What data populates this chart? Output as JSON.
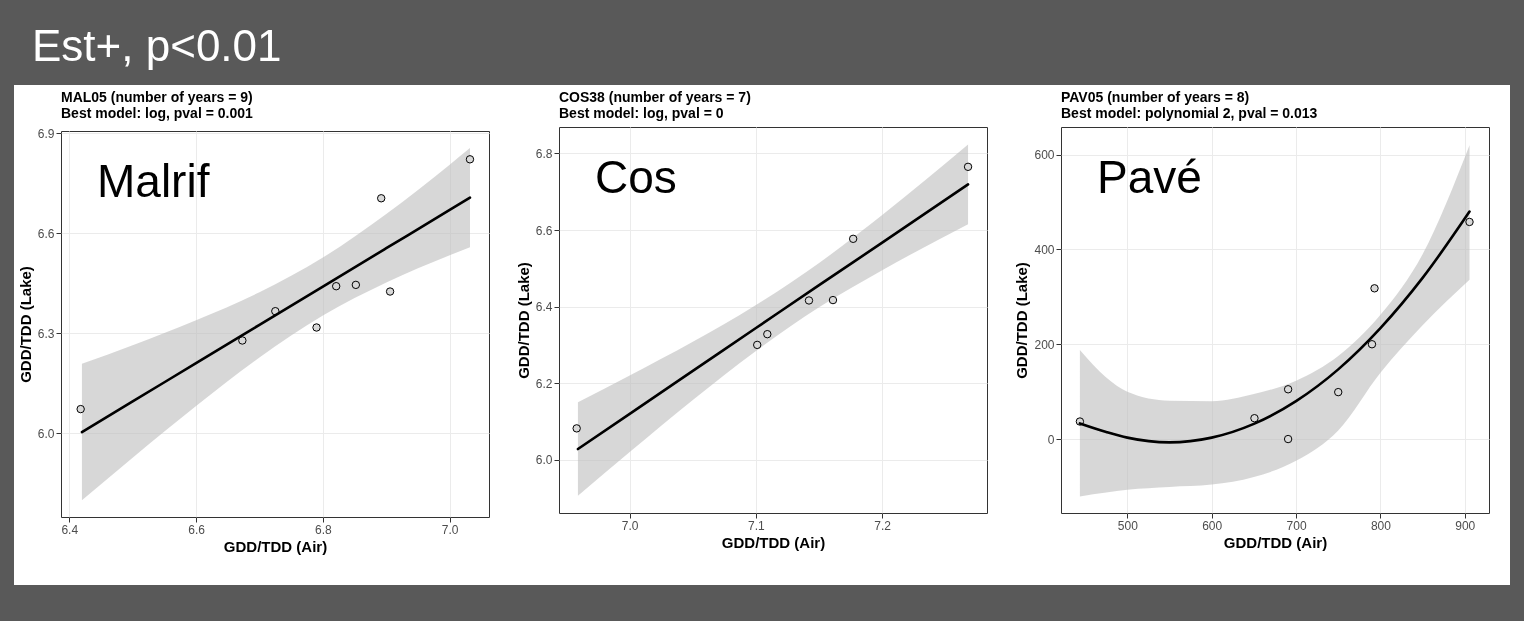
{
  "chart_data": [
    {
      "type": "scatter",
      "title": "MAL05 (number of years = 9)",
      "subtitle": "Best model: log, pval = 0.001",
      "xlabel": "GDD/TDD (Air)",
      "ylabel": "GDD/TDD (Lake)",
      "annotations": [
        "Est+, p<0.01",
        "Malrif"
      ],
      "grid": true,
      "xlim": [
        6.387,
        7.062
      ],
      "xticks": [
        6.4,
        6.6,
        6.8,
        {
          "value": 7,
          "label": "7.0"
        }
      ],
      "ylim": [
        5.748,
        6.907
      ],
      "yticks": [
        {
          "value": 6,
          "label": "6.0"
        },
        6.3,
        6.6,
        6.9
      ],
      "series": [
        {
          "marker": "circle",
          "color": "#d9d9d9",
          "x": [
            6.418,
            6.673,
            6.725,
            6.79,
            6.821,
            6.852,
            6.892,
            6.906,
            7.032
          ],
          "values": [
            6.072,
            6.278,
            6.366,
            6.317,
            6.441,
            6.445,
            6.705,
            6.425,
            6.822
          ]
        },
        {
          "type": "line",
          "color": "#000000",
          "x": [
            6.42,
            6.5,
            6.6,
            6.7,
            6.8,
            6.9,
            7.0,
            7.032
          ],
          "values": [
            6.003,
            6.095,
            6.21,
            6.325,
            6.44,
            6.555,
            6.67,
            6.707
          ],
          "lower": [
            5.798,
            5.926,
            6.081,
            6.227,
            6.353,
            6.452,
            6.534,
            6.558
          ],
          "upper": [
            6.208,
            6.264,
            6.339,
            6.423,
            6.527,
            6.658,
            6.806,
            6.856
          ]
        }
      ]
    },
    {
      "type": "scatter",
      "title": "COS38 (number of years = 7)",
      "subtitle": "Best model: log, pval = 0",
      "xlabel": "GDD/TDD (Air)",
      "ylabel": "GDD/TDD (Lake)",
      "annotations": [
        "Cos"
      ],
      "grid": true,
      "xlim": [
        6.944,
        7.283
      ],
      "xticks": [
        {
          "value": 7,
          "label": "7.0"
        },
        7.1,
        7.2
      ],
      "ylim": [
        5.861,
        6.869
      ],
      "yticks": [
        {
          "value": 6,
          "label": "6.0"
        },
        6.2,
        6.4,
        6.6,
        6.8
      ],
      "series": [
        {
          "marker": "circle",
          "color": "#d9d9d9",
          "x": [
            6.958,
            7.101,
            7.109,
            7.142,
            7.161,
            7.177,
            7.268
          ],
          "values": [
            6.082,
            6.3,
            6.328,
            6.416,
            6.417,
            6.577,
            6.765
          ]
        },
        {
          "type": "line",
          "color": "#000000",
          "x": [
            6.959,
            7.0,
            7.05,
            7.1,
            7.15,
            7.2,
            7.268
          ],
          "values": [
            6.028,
            6.12,
            6.232,
            6.344,
            6.456,
            6.567,
            6.719
          ],
          "lower": [
            5.906,
            6.02,
            6.156,
            6.284,
            6.398,
            6.495,
            6.615
          ],
          "upper": [
            6.15,
            6.22,
            6.308,
            6.404,
            6.514,
            6.639,
            6.823
          ]
        }
      ]
    },
    {
      "type": "scatter",
      "title": "PAV05 (number of years = 8)",
      "subtitle": "Best model: polynomial 2, pval = 0.013",
      "xlabel": "GDD/TDD (Air)",
      "ylabel": "GDD/TDD (Lake)",
      "annotations": [
        "Pavé"
      ],
      "grid": true,
      "xlim": [
        421.4,
        928.7
      ],
      "xticks": [
        500,
        600,
        700,
        800,
        900
      ],
      "ylim": [
        -156,
        658.3
      ],
      "yticks": [
        0,
        200,
        400,
        600
      ],
      "series": [
        {
          "marker": "circle",
          "color": "#d9d9d9",
          "x": [
            443.8,
            650.7,
            690.6,
            690.6,
            750,
            790,
            793,
            905.6
          ],
          "values": [
            37,
            44,
            105,
            0,
            99,
            200,
            318,
            458
          ]
        },
        {
          "type": "line",
          "color": "#000000",
          "x": [
            443.8,
            475,
            500,
            550,
            600,
            650,
            700,
            750,
            800,
            850,
            905.6
          ],
          "values": [
            33,
            15,
            3,
            -7,
            3,
            32,
            80,
            147,
            234,
            340,
            480
          ],
          "lower": [
            -121,
            -113,
            -107,
            -101,
            -96,
            -80,
            -46,
            18,
            140,
            240,
            336
          ],
          "upper": [
            188,
            130,
            100,
            81,
            80,
            95,
            123,
            175,
            262,
            390,
            620
          ]
        }
      ]
    }
  ]
}
